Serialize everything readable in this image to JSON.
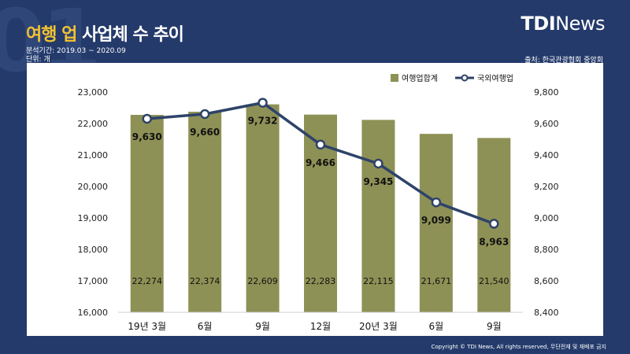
{
  "header": {
    "bg_number": "01",
    "title_highlight": "여행 업",
    "title_rest": "사업체 수 추이",
    "period": "분석기간: 2019.03 ~ 2020.09",
    "unit": "단위:  개",
    "logo_tdi": "TDI",
    "logo_news": "News",
    "source": "출처: 한국관광협회 중앙회"
  },
  "footer": {
    "copyright": "Copyright © TDI News, All rights reserved, 무단전재 및 재배포 금지"
  },
  "colors": {
    "background": "#243a6b",
    "bar": "#8e9155",
    "line": "#2e4369",
    "title_highlight": "#f2c230"
  },
  "chart_data": {
    "type": "bar+line",
    "categories": [
      "19년 3월",
      "6월",
      "9월",
      "12월",
      "20년 3월",
      "6월",
      "9월"
    ],
    "series": [
      {
        "name": "여행업합계",
        "type": "bar",
        "axis": "left",
        "values": [
          22274,
          22374,
          22609,
          22283,
          22115,
          21671,
          21540
        ],
        "labels": [
          "22,274",
          "22,374",
          "22,609",
          "22,283",
          "22,115",
          "21,671",
          "21,540"
        ]
      },
      {
        "name": "국외여행업",
        "type": "line",
        "axis": "right",
        "values": [
          9630,
          9660,
          9732,
          9466,
          9345,
          9099,
          8963
        ],
        "labels": [
          "9,630",
          "9,660",
          "9,732",
          "9,466",
          "9,345",
          "9,099",
          "8,963"
        ]
      }
    ],
    "y_left": {
      "min": 16000,
      "max": 23000,
      "step": 1000,
      "ticks": [
        "16,000",
        "17,000",
        "18,000",
        "19,000",
        "20,000",
        "21,000",
        "22,000",
        "23,000"
      ]
    },
    "y_right": {
      "min": 8400,
      "max": 9800,
      "step": 200,
      "ticks": [
        "8,400",
        "8,600",
        "8,800",
        "9,000",
        "9,200",
        "9,400",
        "9,600",
        "9,800"
      ]
    },
    "legend_position": "top-right",
    "grid": false
  }
}
